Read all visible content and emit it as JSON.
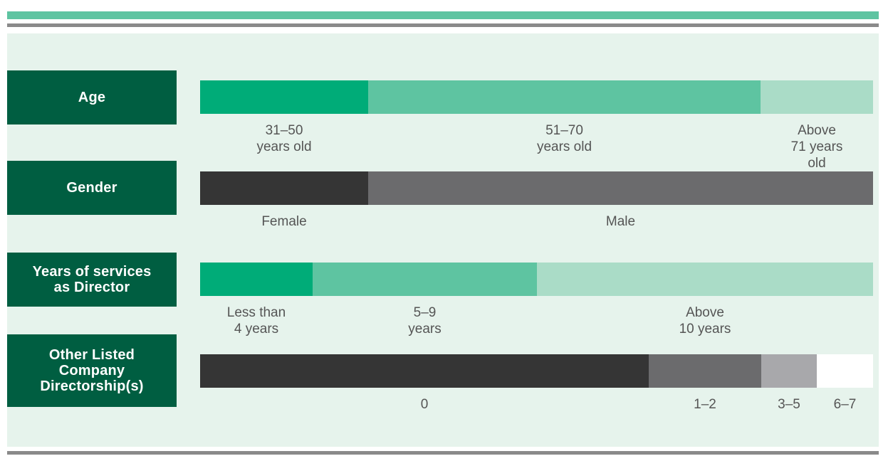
{
  "colors": {
    "green_dark": "#00ac78",
    "green_mid": "#5ec4a1",
    "green_light": "#aadcc7",
    "grey_dark": "#353535",
    "grey_mid": "#6b6b6d",
    "grey_light": "#a8a8ab",
    "white": "#ffffff",
    "label_bg": "#005e41"
  },
  "chart_data": {
    "type": "bar",
    "orientation": "horizontal-stacked-100",
    "unit": "proportion",
    "rows": [
      {
        "label": "Age",
        "segments": [
          {
            "name": "31–50\nyears old",
            "value": 0.25,
            "color": "#00ac78"
          },
          {
            "name": "51–70\nyears old",
            "value": 0.5833,
            "color": "#5ec4a1"
          },
          {
            "name": "Above\n71 years old",
            "value": 0.1667,
            "color": "#aadcc7"
          }
        ]
      },
      {
        "label": "Gender",
        "segments": [
          {
            "name": "Female",
            "value": 0.25,
            "color": "#353535"
          },
          {
            "name": "Male",
            "value": 0.75,
            "color": "#6b6b6d"
          }
        ]
      },
      {
        "label": "Years of services\nas Director",
        "segments": [
          {
            "name": "Less than\n4 years",
            "value": 0.1667,
            "color": "#00ac78"
          },
          {
            "name": "5–9\nyears",
            "value": 0.3333,
            "color": "#5ec4a1"
          },
          {
            "name": "Above\n10 years",
            "value": 0.5,
            "color": "#aadcc7"
          }
        ]
      },
      {
        "label": "Other Listed\nCompany\nDirectorship(s)",
        "segments": [
          {
            "name": "0",
            "value": 0.6667,
            "color": "#353535"
          },
          {
            "name": "1–2",
            "value": 0.1667,
            "color": "#6b6b6d"
          },
          {
            "name": "3–5",
            "value": 0.0833,
            "color": "#a8a8ab"
          },
          {
            "name": "6–7",
            "value": 0.0833,
            "color": "#ffffff"
          }
        ]
      }
    ]
  }
}
